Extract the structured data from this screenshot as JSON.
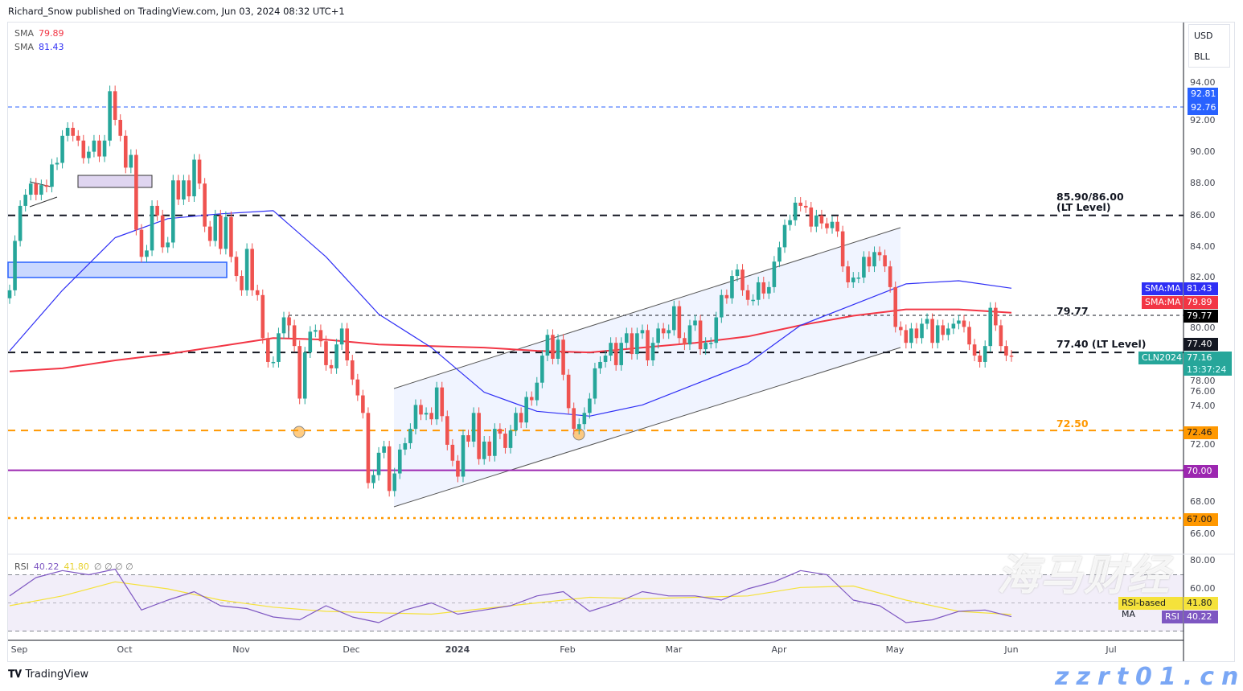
{
  "header": {
    "text": "Richard_Snow published on TradingView.com, Jun 03, 2024 08:32 UTC+1"
  },
  "legend": {
    "sma1_label": "SMA",
    "sma1_value": "79.89",
    "sma2_label": "SMA",
    "sma2_value": "81.43",
    "rsi_label": "RSI",
    "rsi_value": "40.22",
    "rsi_ma_value": "41.80",
    "rsi_extra": "∅ ∅ ∅ ∅"
  },
  "units": {
    "currency": "USD",
    "unit": "BLL"
  },
  "price_axis": [
    "94.00",
    "92.00",
    "90.00",
    "88.00",
    "86.00",
    "84.00",
    "82.00",
    "80.00",
    "78.00",
    "76.00",
    "74.00",
    "72.00",
    "68.00",
    "66.00"
  ],
  "rsi_axis": [
    "80.00",
    "60.00"
  ],
  "time_axis": [
    "Sep",
    "Oct",
    "Nov",
    "Dec",
    "2024",
    "Feb",
    "Mar",
    "Apr",
    "May",
    "Jun",
    "Jul"
  ],
  "tags": {
    "high1": "92.81",
    "high2": "92.76",
    "sma_blue_label": "SMA:MA",
    "sma_blue": "81.43",
    "sma_red_label": "SMA:MA",
    "sma_red": "79.89",
    "level_7977": "79.77",
    "level_7740": "77.40",
    "symbol": "CLN2024",
    "last": "77.16",
    "countdown": "13:37:24",
    "level_7246": "72.46",
    "level_70": "70.00",
    "level_67": "67.00",
    "rsi_ma_label": "RSI-based MA",
    "rsi_ma": "41.80",
    "rsi_label": "RSI",
    "rsi": "40.22"
  },
  "annotations": {
    "lt_upper_1": "85.90/86.00",
    "lt_upper_2": "(LT Level)",
    "mid": "79.77",
    "lt_lower": "77.40 (LT Level)",
    "support": "72.50"
  },
  "branding": {
    "logo": "TradingView"
  },
  "watermark": {
    "line1": "海马财经",
    "line2": "zzrt01.cn"
  },
  "colors": {
    "up": "#26a69a",
    "down": "#ef5350",
    "sma_fast": "#2f2ff5",
    "sma_slow": "#f23645",
    "rsi": "#7e57c2",
    "rsi_ma": "#f5e23b",
    "level_orange": "#ff9800",
    "level_purple": "#9c27b0",
    "level_blue": "#2962ff"
  },
  "chart_data": {
    "type": "candlestick",
    "symbol": "CLN2024",
    "interval": "daily",
    "x_range": [
      "Sep 2023",
      "Jun 3, 2024"
    ],
    "ylim": [
      65,
      95
    ],
    "first_open": 80.8,
    "close": [
      81.3,
      84.4,
      86.6,
      87.3,
      88.0,
      87.3,
      87.9,
      87.8,
      89.2,
      89.3,
      91.0,
      91.5,
      91.0,
      90.7,
      89.6,
      90.0,
      90.7,
      89.7,
      90.7,
      93.8,
      92.0,
      91.0,
      89.0,
      89.8,
      85.1,
      83.4,
      83.8,
      86.6,
      86.0,
      84.0,
      84.3,
      88.2,
      87.0,
      88.2,
      87.2,
      89.5,
      88.0,
      85.3,
      84.4,
      86.0,
      83.9,
      85.9,
      83.4,
      82.2,
      81.3,
      83.9,
      81.3,
      81.0,
      78.3,
      76.8,
      76.8,
      78.6,
      79.6,
      79.1,
      77.8,
      74.5,
      77.4,
      78.7,
      78.8,
      78.1,
      76.6,
      76.4,
      77.9,
      78.9,
      76.9,
      75.7,
      74.7,
      73.6,
      69.2,
      69.7,
      71.1,
      71.5,
      68.7,
      69.8,
      71.3,
      71.7,
      72.6,
      74.1,
      73.5,
      73.6,
      73.2,
      75.2,
      73.4,
      71.6,
      70.6,
      69.6,
      72.2,
      71.8,
      73.6,
      70.7,
      71.8,
      70.9,
      72.6,
      72.3,
      71.4,
      72.5,
      73.6,
      73.0,
      74.6,
      74.4,
      75.5,
      77.2,
      78.5,
      77.0,
      78.2,
      76.0,
      73.9,
      72.6,
      72.9,
      73.6,
      74.5,
      76.4,
      76.8,
      77.2,
      78.0,
      76.6,
      78.0,
      78.6,
      77.3,
      78.6,
      78.8,
      76.9,
      78.0,
      78.9,
      78.6,
      78.8,
      80.3,
      78.3,
      77.9,
      79.1,
      79.4,
      77.6,
      78.0,
      78.0,
      79.6,
      81.0,
      80.8,
      82.2,
      82.6,
      81.3,
      80.7,
      80.7,
      81.8,
      81.1,
      81.5,
      83.1,
      84.0,
      85.4,
      85.7,
      86.8,
      86.6,
      86.5,
      85.3,
      86.0,
      85.5,
      85.2,
      85.6,
      85.0,
      82.8,
      81.8,
      82.1,
      82.1,
      83.4,
      82.8,
      83.7,
      83.5,
      82.8,
      81.5,
      79.0,
      78.8,
      78.0,
      78.9,
      78.3,
      79.2,
      79.5,
      78.0,
      79.1,
      78.5,
      78.9,
      79.2,
      79.4,
      79.0,
      77.9,
      77.2,
      76.8,
      77.8,
      80.2,
      79.1,
      77.8,
      77.2,
      77.16
    ],
    "sma_sample_step": 10,
    "sma_fast": [
      77.5,
      81.3,
      84.6,
      85.8,
      86.1,
      86.3,
      83.4,
      79.8,
      77.7,
      74.9,
      73.7,
      73.4,
      74.1,
      75.4,
      76.7,
      79.1,
      80.4,
      81.7,
      81.9,
      81.43
    ],
    "sma_slow": [
      76.2,
      76.4,
      76.9,
      77.3,
      77.8,
      78.3,
      78.2,
      77.9,
      77.8,
      77.7,
      77.5,
      77.4,
      77.7,
      78.0,
      78.4,
      79.1,
      79.7,
      80.1,
      80.1,
      79.89
    ],
    "rsi_sample_step": 5,
    "rsi": [
      55,
      68,
      73,
      70,
      74,
      45,
      52,
      58,
      48,
      46,
      40,
      38,
      48,
      40,
      36,
      45,
      50,
      42,
      45,
      48,
      55,
      58,
      44,
      50,
      58,
      55,
      55,
      52,
      60,
      65,
      73,
      70,
      52,
      48,
      36,
      38,
      44,
      45,
      40.22
    ],
    "rsi_ma_sample_step": 10,
    "rsi_ma": [
      48,
      55,
      65,
      60,
      52,
      47,
      44,
      43,
      42,
      46,
      50,
      54,
      53,
      54,
      55,
      61,
      62,
      52,
      44,
      41.8
    ],
    "rsi_ylim": [
      20,
      85
    ],
    "rsi_bands": [
      70,
      50,
      30
    ],
    "levels": [
      {
        "price": 92.81,
        "style": "dashed",
        "color": "#2962ff"
      },
      {
        "price": 86.0,
        "style": "dashed",
        "color": "#131722"
      },
      {
        "price": 79.77,
        "style": "dotted",
        "color": "#131722"
      },
      {
        "price": 77.4,
        "style": "dashed",
        "color": "#131722"
      },
      {
        "price": 72.5,
        "style": "dashed",
        "color": "#ff9800"
      },
      {
        "price": 70.0,
        "style": "solid",
        "color": "#9c27b0"
      },
      {
        "price": 67.0,
        "style": "dotted",
        "color": "#ff9800"
      }
    ],
    "grid": false
  }
}
